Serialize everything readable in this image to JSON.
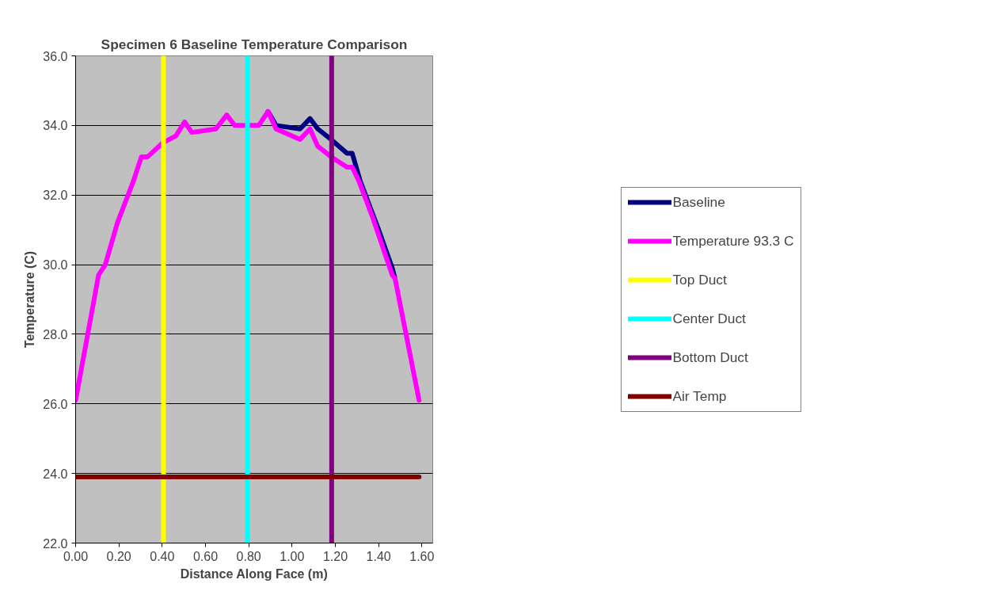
{
  "chart_data": {
    "type": "line",
    "title": "Specimen 6 Baseline Temperature Comparison",
    "xlabel": "Distance Along Face (m)",
    "ylabel": "Temperature (C)",
    "xlim": [
      0,
      1.65
    ],
    "ylim": [
      22,
      36
    ],
    "xticks": [
      {
        "value": 0,
        "label": "0.00"
      },
      {
        "value": 0.2,
        "label": "0.20"
      },
      {
        "value": 0.4,
        "label": "0.40"
      },
      {
        "value": 0.6,
        "label": "0.60"
      },
      {
        "value": 0.8,
        "label": "0.80"
      },
      {
        "value": 1.0,
        "label": "1.00"
      },
      {
        "value": 1.2,
        "label": "1.20"
      },
      {
        "value": 1.4,
        "label": "1.40"
      },
      {
        "value": 1.6,
        "label": "1.60"
      }
    ],
    "yticks": [
      {
        "value": 22,
        "label": "22.0"
      },
      {
        "value": 24,
        "label": "24.0"
      },
      {
        "value": 26,
        "label": "26.0"
      },
      {
        "value": 28,
        "label": "28.0"
      },
      {
        "value": 30,
        "label": "30.0"
      },
      {
        "value": 32,
        "label": "32.0"
      },
      {
        "value": 34,
        "label": "34.0"
      },
      {
        "value": 36,
        "label": "36.0"
      }
    ],
    "grid": "y",
    "legend": "right",
    "marker": "none",
    "line_style": "solid",
    "series": [
      {
        "name": "Baseline",
        "color": "#000080",
        "x": [
          0.889,
          0.926,
          1.037,
          1.083,
          1.119,
          1.18,
          1.254,
          1.278,
          1.315,
          1.4,
          1.463,
          1.476
        ],
        "values": [
          34.4,
          34.0,
          33.9,
          34.2,
          33.9,
          33.6,
          33.2,
          33.2,
          32.4,
          31.0,
          29.9,
          29.6
        ]
      },
      {
        "name": "Temperature 93.3 C",
        "color": "#ff00ff",
        "x": [
          0,
          0.106,
          0.137,
          0.193,
          0.267,
          0.304,
          0.333,
          0.402,
          0.463,
          0.504,
          0.537,
          0.648,
          0.698,
          0.735,
          0.846,
          0.889,
          0.926,
          1.037,
          1.083,
          1.119,
          1.18,
          1.254,
          1.278,
          1.309,
          1.37,
          1.463,
          1.476,
          1.587
        ],
        "values": [
          26.1,
          29.7,
          30.0,
          31.2,
          32.4,
          33.1,
          33.1,
          33.5,
          33.7,
          34.1,
          33.8,
          33.9,
          34.3,
          34.0,
          34.0,
          34.4,
          33.9,
          33.6,
          33.9,
          33.4,
          33.1,
          32.8,
          32.8,
          32.4,
          31.4,
          29.7,
          29.6,
          26.1
        ]
      },
      {
        "name": "Top Duct",
        "color": "#ffff00",
        "x": [
          0.406,
          0.406
        ],
        "values": [
          22,
          36
        ]
      },
      {
        "name": "Center Duct",
        "color": "#00ffff",
        "x": [
          0.794,
          0.794
        ],
        "values": [
          22,
          36
        ]
      },
      {
        "name": "Bottom Duct",
        "color": "#800080",
        "x": [
          1.183,
          1.183
        ],
        "values": [
          22,
          36
        ]
      },
      {
        "name": "Air Temp",
        "color": "#800000",
        "x": [
          0,
          1.587
        ],
        "values": [
          23.9,
          23.9
        ]
      }
    ]
  }
}
